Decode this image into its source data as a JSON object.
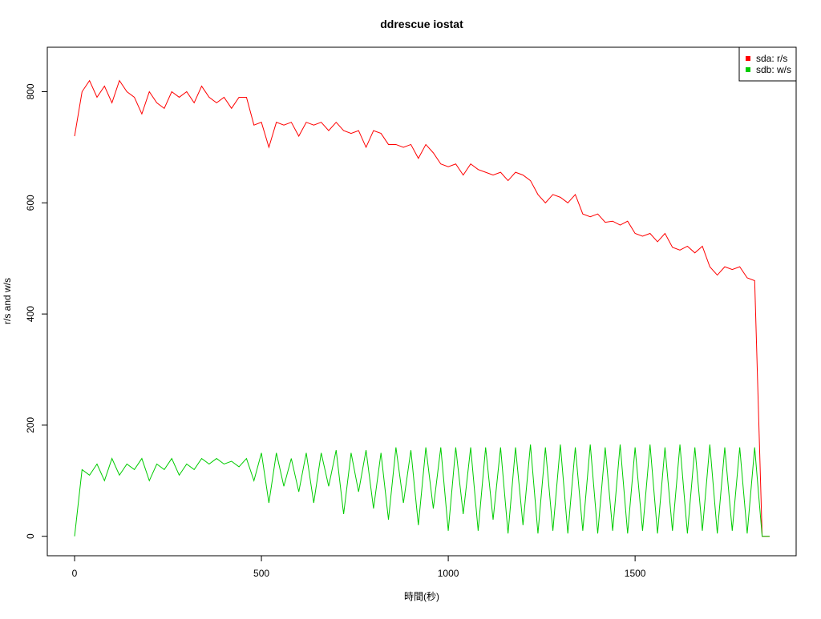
{
  "chart_data": {
    "type": "line",
    "title": "ddrescue iostat",
    "x_label": "時間(秒)",
    "y_label": "r/s and w/s",
    "x": [
      0,
      20,
      40,
      60,
      80,
      100,
      120,
      140,
      160,
      180,
      200,
      220,
      240,
      260,
      280,
      300,
      320,
      340,
      360,
      380,
      400,
      420,
      440,
      460,
      480,
      500,
      520,
      540,
      560,
      580,
      600,
      620,
      640,
      660,
      680,
      700,
      720,
      740,
      760,
      780,
      800,
      820,
      840,
      860,
      880,
      900,
      920,
      940,
      960,
      980,
      1000,
      1020,
      1040,
      1060,
      1080,
      1100,
      1120,
      1140,
      1160,
      1180,
      1200,
      1220,
      1240,
      1260,
      1280,
      1300,
      1320,
      1340,
      1360,
      1380,
      1400,
      1420,
      1440,
      1460,
      1480,
      1500,
      1520,
      1540,
      1560,
      1580,
      1600,
      1620,
      1640,
      1660,
      1680,
      1700,
      1720,
      1740,
      1760,
      1780,
      1800,
      1820,
      1840,
      1860
    ],
    "series": [
      {
        "name": "sda: r/s",
        "color": "#ff0000",
        "values": [
          720,
          800,
          820,
          790,
          810,
          780,
          820,
          800,
          790,
          760,
          800,
          780,
          770,
          800,
          790,
          800,
          780,
          810,
          790,
          780,
          790,
          770,
          790,
          790,
          740,
          745,
          700,
          745,
          740,
          745,
          720,
          745,
          740,
          745,
          730,
          745,
          730,
          725,
          730,
          700,
          730,
          725,
          705,
          705,
          700,
          705,
          680,
          705,
          690,
          670,
          665,
          670,
          650,
          670,
          660,
          655,
          650,
          655,
          640,
          655,
          650,
          640,
          615,
          600,
          615,
          610,
          600,
          615,
          580,
          575,
          580,
          565,
          567,
          560,
          567,
          545,
          540,
          545,
          530,
          545,
          520,
          515,
          522,
          510,
          522,
          485,
          470,
          485,
          480,
          485,
          465,
          460,
          0,
          0
        ]
      },
      {
        "name": "sdb: w/s",
        "color": "#00cc00",
        "values": [
          0,
          120,
          110,
          130,
          100,
          140,
          110,
          130,
          120,
          140,
          100,
          130,
          120,
          140,
          110,
          130,
          120,
          140,
          130,
          140,
          130,
          135,
          125,
          140,
          100,
          150,
          60,
          150,
          90,
          140,
          80,
          150,
          60,
          150,
          90,
          155,
          40,
          150,
          80,
          155,
          50,
          150,
          30,
          160,
          60,
          155,
          20,
          160,
          50,
          160,
          10,
          160,
          40,
          160,
          10,
          160,
          30,
          160,
          5,
          160,
          20,
          165,
          5,
          160,
          10,
          165,
          5,
          160,
          10,
          165,
          5,
          160,
          10,
          165,
          5,
          160,
          10,
          165,
          5,
          160,
          10,
          165,
          5,
          160,
          10,
          165,
          5,
          160,
          10,
          160,
          5,
          160,
          0,
          0
        ]
      }
    ],
    "xlim": [
      -73,
      1931
    ],
    "ylim": [
      -35,
      880
    ],
    "xticks": [
      0,
      500,
      1000,
      1500
    ],
    "yticks": [
      0,
      200,
      400,
      600,
      800
    ],
    "legend": "top-right"
  }
}
